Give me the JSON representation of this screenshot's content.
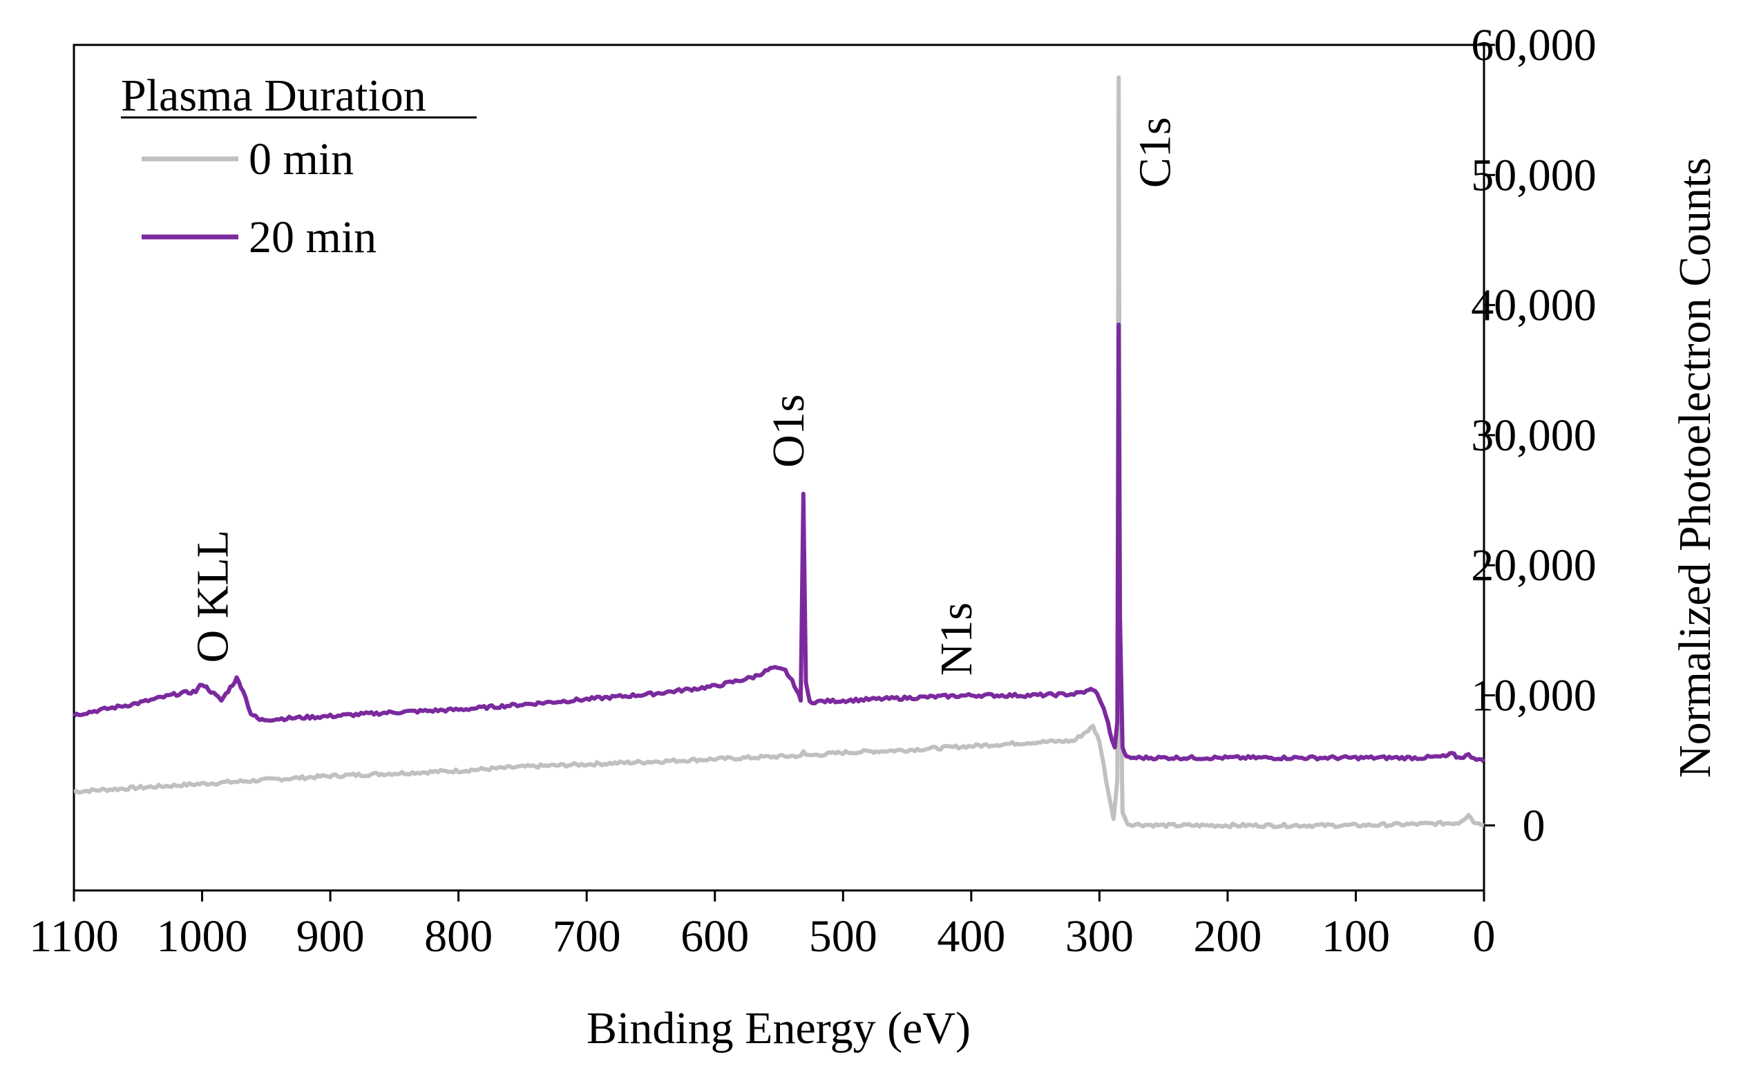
{
  "chart_data": {
    "type": "line",
    "xlabel": "Binding Energy (eV)",
    "ylabel": "Normalized Photoelectron Counts",
    "xlim": [
      1100,
      0
    ],
    "ylim": [
      -5000,
      60000
    ],
    "x_ticks": [
      1100,
      1000,
      900,
      800,
      700,
      600,
      500,
      400,
      300,
      200,
      100,
      0
    ],
    "x_tick_labels": [
      "1100",
      "1000",
      "900",
      "800",
      "700",
      "600",
      "500",
      "400",
      "300",
      "200",
      "100",
      "0"
    ],
    "y_ticks": [
      0,
      10000,
      20000,
      30000,
      40000,
      50000,
      60000
    ],
    "y_tick_labels": [
      "0",
      "10,000",
      "20,000",
      "30,000",
      "40,000",
      "50,000",
      "60,000"
    ],
    "legend": {
      "title": "Plasma Duration",
      "position": "top-left",
      "entries": [
        "0 min",
        "20 min"
      ]
    },
    "annotations": [
      {
        "text": "O KLL",
        "x": 980,
        "y": 12500
      },
      {
        "text": "O1s",
        "x": 531,
        "y": 27500
      },
      {
        "text": "N1s",
        "x": 400,
        "y": 11500
      },
      {
        "text": "C1s",
        "x": 245,
        "y": 49000
      }
    ],
    "series": [
      {
        "name": "0 min",
        "color": "#c0c0c0",
        "points": [
          [
            1100,
            2600
          ],
          [
            1050,
            2900
          ],
          [
            1000,
            3200
          ],
          [
            950,
            3500
          ],
          [
            900,
            3800
          ],
          [
            850,
            4000
          ],
          [
            800,
            4200
          ],
          [
            750,
            4500
          ],
          [
            700,
            4700
          ],
          [
            650,
            4900
          ],
          [
            600,
            5100
          ],
          [
            550,
            5300
          ],
          [
            533,
            5350
          ],
          [
            531,
            5700
          ],
          [
            529,
            5350
          ],
          [
            500,
            5600
          ],
          [
            450,
            5800
          ],
          [
            400,
            6100
          ],
          [
            350,
            6400
          ],
          [
            320,
            6500
          ],
          [
            305,
            7600
          ],
          [
            300,
            6500
          ],
          [
            293,
            2500
          ],
          [
            289,
            500
          ],
          [
            286,
            3500
          ],
          [
            285,
            57500
          ],
          [
            284,
            15000
          ],
          [
            282,
            1000
          ],
          [
            278,
            100
          ],
          [
            250,
            0
          ],
          [
            200,
            0
          ],
          [
            150,
            0
          ],
          [
            100,
            0
          ],
          [
            50,
            100
          ],
          [
            20,
            200
          ],
          [
            12,
            800
          ],
          [
            8,
            300
          ],
          [
            0,
            0
          ]
        ]
      },
      {
        "name": "20 min",
        "color": "#7b2a9e",
        "points": [
          [
            1100,
            8500
          ],
          [
            1050,
            9400
          ],
          [
            1020,
            10100
          ],
          [
            1005,
            10300
          ],
          [
            1000,
            10900
          ],
          [
            993,
            10300
          ],
          [
            985,
            9600
          ],
          [
            978,
            10600
          ],
          [
            973,
            11300
          ],
          [
            968,
            10400
          ],
          [
            962,
            8600
          ],
          [
            955,
            8100
          ],
          [
            940,
            8200
          ],
          [
            900,
            8400
          ],
          [
            850,
            8700
          ],
          [
            800,
            8900
          ],
          [
            750,
            9300
          ],
          [
            700,
            9700
          ],
          [
            650,
            10100
          ],
          [
            600,
            10700
          ],
          [
            570,
            11400
          ],
          [
            555,
            12100
          ],
          [
            545,
            11900
          ],
          [
            538,
            10800
          ],
          [
            533,
            9600
          ],
          [
            531,
            25500
          ],
          [
            529,
            11000
          ],
          [
            526,
            9500
          ],
          [
            500,
            9600
          ],
          [
            450,
            9800
          ],
          [
            400,
            10000
          ],
          [
            350,
            10000
          ],
          [
            320,
            10100
          ],
          [
            310,
            10300
          ],
          [
            305,
            10500
          ],
          [
            300,
            9800
          ],
          [
            295,
            8500
          ],
          [
            290,
            6500
          ],
          [
            288,
            6000
          ],
          [
            286,
            8000
          ],
          [
            285,
            38500
          ],
          [
            284,
            16000
          ],
          [
            282,
            6000
          ],
          [
            279,
            5200
          ],
          [
            250,
            5200
          ],
          [
            200,
            5200
          ],
          [
            150,
            5200
          ],
          [
            100,
            5200
          ],
          [
            50,
            5200
          ],
          [
            30,
            5300
          ],
          [
            25,
            5500
          ],
          [
            20,
            5200
          ],
          [
            12,
            5400
          ],
          [
            0,
            4900
          ]
        ]
      }
    ]
  }
}
